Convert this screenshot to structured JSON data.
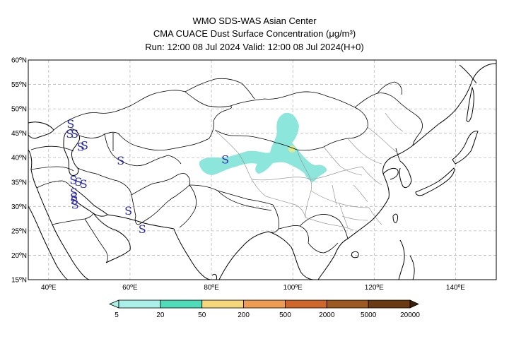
{
  "header": {
    "line1": "WMO SDS-WAS Asian Center",
    "line2": "CMA CUACE Dust Surface Concentration (μg/m³)",
    "line3": "Run: 12:00 08 Jul 2024    Valid: 12:00 08 Jul 2024(H+0)"
  },
  "map": {
    "lon_range": [
      35,
      150
    ],
    "lat_range": [
      15,
      60
    ],
    "lat_ticks": [
      {
        "value": 60,
        "label": "60ºN"
      },
      {
        "value": 55,
        "label": "55ºN"
      },
      {
        "value": 50,
        "label": "50ºN"
      },
      {
        "value": 45,
        "label": "45ºN"
      },
      {
        "value": 40,
        "label": "40ºN"
      },
      {
        "value": 35,
        "label": "35ºN"
      },
      {
        "value": 30,
        "label": "30ºN"
      },
      {
        "value": 25,
        "label": "25ºN"
      },
      {
        "value": 20,
        "label": "20ºN"
      },
      {
        "value": 15,
        "label": "15ºN"
      }
    ],
    "lon_ticks": [
      {
        "value": 40,
        "label": "40ºE"
      },
      {
        "value": 60,
        "label": "60ºE"
      },
      {
        "value": 80,
        "label": "80ºE"
      },
      {
        "value": 100,
        "label": "100ºE"
      },
      {
        "value": 120,
        "label": "120ºE"
      },
      {
        "value": 140,
        "label": "140ºE"
      }
    ],
    "gridlines": true,
    "dust_symbol": "S",
    "dust_symbol_color": "#2a2aa8",
    "dust_symbols_lonlat": [
      [
        45.4,
        46.8
      ],
      [
        45.2,
        44.8
      ],
      [
        46.4,
        44.8
      ],
      [
        48.8,
        42.4
      ],
      [
        47.9,
        42.1
      ],
      [
        57.7,
        39.3
      ],
      [
        46.1,
        35.3
      ],
      [
        47.3,
        35.0
      ],
      [
        48.6,
        34.5
      ],
      [
        46.2,
        32.8
      ],
      [
        46.2,
        31.8
      ],
      [
        46.3,
        31.1
      ],
      [
        46.5,
        30.3
      ],
      [
        59.6,
        29.0
      ],
      [
        63.0,
        25.3
      ],
      [
        83.4,
        39.5
      ]
    ],
    "dust_fill_color": "#8de6dc",
    "dust_core_color": "#e9e77a"
  },
  "colorbar": {
    "colors": [
      "#a8f0e8",
      "#4fdcb8",
      "#f5d77a",
      "#ee9c52",
      "#d0672a",
      "#9c5a20",
      "#6a3a12",
      "#3a2008"
    ],
    "labels": [
      "5",
      "20",
      "50",
      "200",
      "500",
      "2000",
      "5000",
      "20000"
    ]
  }
}
